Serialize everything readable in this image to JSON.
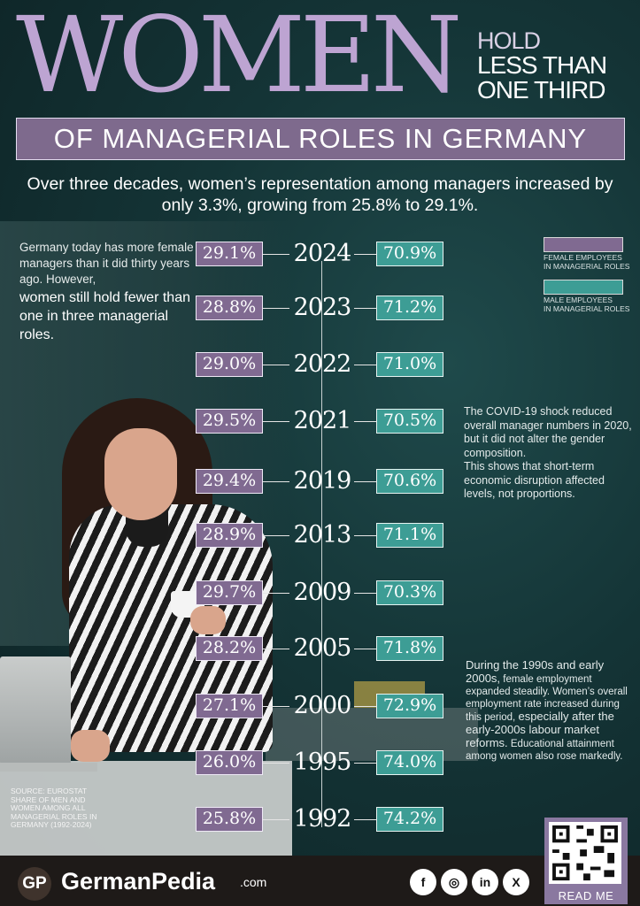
{
  "title": {
    "big": "WOMEN",
    "right_lines": [
      "HOLD",
      "LESS THAN",
      "ONE THIRD"
    ],
    "banner": "OF MANAGERIAL ROLES IN GERMANY"
  },
  "subtitle": {
    "line1": "Over three decades, women’s representation among managers increased by",
    "line2": "only 3.3%, growing from 25.8% to 29.1%."
  },
  "intro": {
    "normal": "Germany today has more female managers than it did thirty years ago. However,",
    "emphasis": "women still hold fewer than one in three managerial roles."
  },
  "legend": {
    "female_line1": "FEMALE EMPLOYEES",
    "female_line2": "IN MANAGERIAL ROLES",
    "male_line1": "MALE EMPLOYEES",
    "male_line2": "IN MANAGERIAL ROLES",
    "female_color": "#806a91",
    "male_color": "#3d9d95"
  },
  "chart_data": {
    "type": "table",
    "categories": [
      "2024",
      "2023",
      "2022",
      "2021",
      "2019",
      "2013",
      "2009",
      "2005",
      "2000",
      "1995",
      "1992"
    ],
    "series": [
      {
        "name": "FEMALE EMPLOYEES IN MANAGERIAL ROLES",
        "values": [
          29.1,
          28.8,
          29.0,
          29.5,
          29.4,
          28.9,
          29.7,
          28.2,
          27.1,
          26.0,
          25.8
        ]
      },
      {
        "name": "MALE EMPLOYEES IN MANAGERIAL ROLES",
        "values": [
          70.9,
          71.2,
          71.0,
          70.5,
          70.6,
          71.1,
          70.3,
          71.8,
          72.9,
          74.0,
          74.2
        ]
      }
    ],
    "labels_female": [
      "29.1%",
      "28.8%",
      "29.0%",
      "29.5%",
      "29.4%",
      "28.9%",
      "29.7%",
      "28.2%",
      "27.1%",
      "26.0%",
      "25.8%"
    ],
    "labels_male": [
      "70.9%",
      "71.2%",
      "71.0%",
      "70.5%",
      "70.6%",
      "71.1%",
      "70.3%",
      "71.8%",
      "72.9%",
      "74.0%",
      "74.2%"
    ]
  },
  "covid_note": {
    "line1": "The COVID-19 shock reduced overall manager numbers in 2020, but it did not alter the gender composition.",
    "line2": "This shows that short-term economic disruption affected levels, not proportions."
  },
  "nineties_note": {
    "big1": "During the 1990s and early 2000s,",
    "small1": "female employment expanded steadily. Women’s overall employment rate increased during this period,",
    "big2": "especially after the early-2000s labour market reforms.",
    "small2": "Educational attainment among women also rose markedly."
  },
  "source": "SOURCE: EUROSTAT SHARE OF MEN AND WOMEN AMONG ALL MANAGERIAL ROLES IN GERMANY (1992-2024)",
  "footer": {
    "logo": "GP",
    "brand": "GermanPedia",
    "tld": ".com",
    "social": [
      {
        "icon": "facebook-icon",
        "glyph": "f"
      },
      {
        "icon": "instagram-icon",
        "glyph": "◎"
      },
      {
        "icon": "linkedin-icon",
        "glyph": "in"
      },
      {
        "icon": "x-icon",
        "glyph": "X"
      }
    ],
    "read_more": "READ ME"
  }
}
